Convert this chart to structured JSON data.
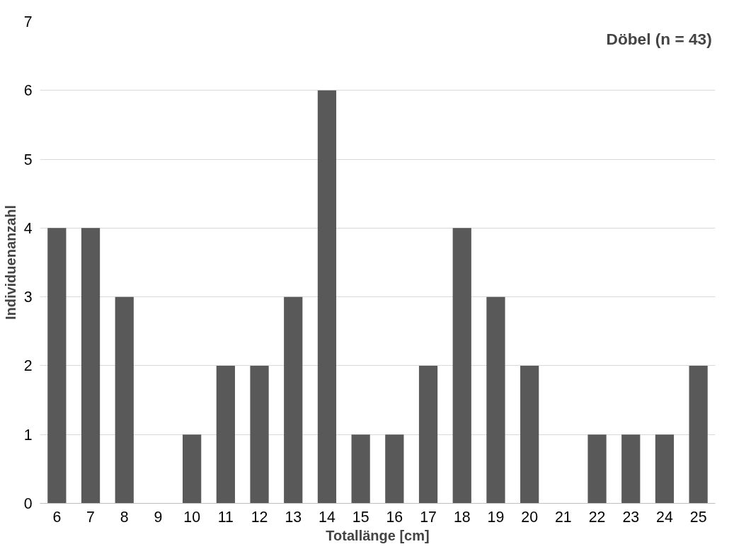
{
  "chart_data": {
    "type": "bar",
    "categories": [
      "6",
      "7",
      "8",
      "9",
      "10",
      "11",
      "12",
      "13",
      "14",
      "15",
      "16",
      "17",
      "18",
      "19",
      "20",
      "21",
      "22",
      "23",
      "24",
      "25"
    ],
    "values": [
      4,
      4,
      3,
      0,
      1,
      2,
      2,
      3,
      6,
      1,
      1,
      2,
      4,
      3,
      2,
      0,
      1,
      1,
      1,
      2
    ],
    "color": "#595959",
    "xlabel": "Totallänge [cm]",
    "ylabel": "Individuenanzahl",
    "annotations": [
      "Döbel (n = 43)"
    ],
    "ylim": [
      0,
      7
    ],
    "yticks": [
      0,
      1,
      2,
      3,
      4,
      5,
      6,
      7
    ],
    "grid": "y"
  }
}
